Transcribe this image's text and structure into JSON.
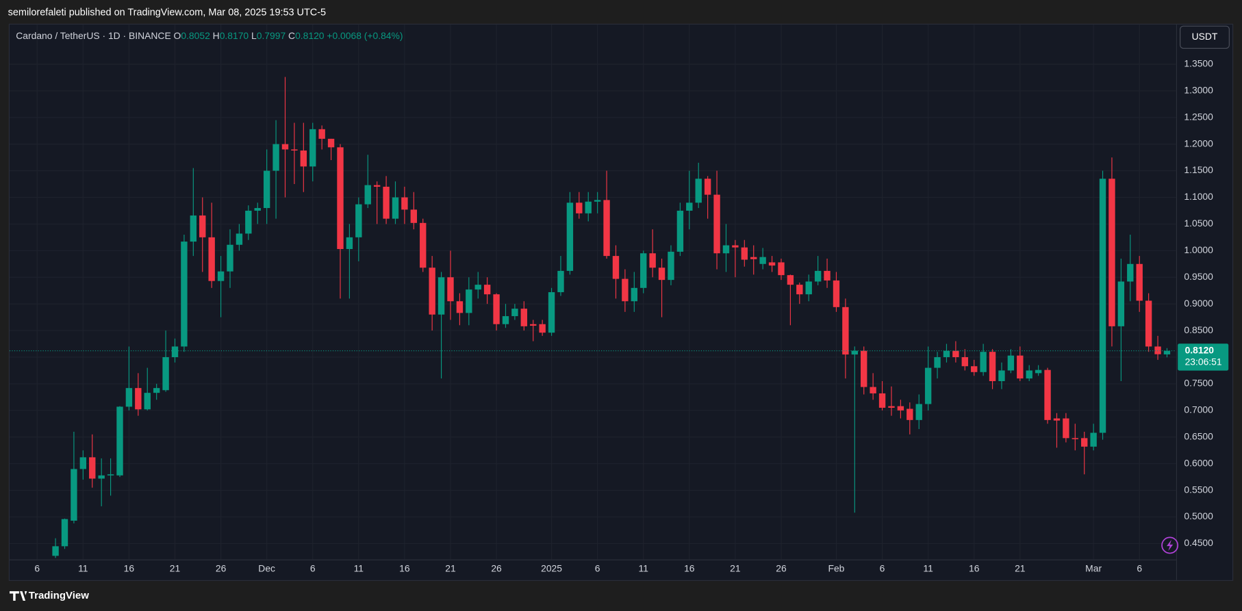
{
  "header": {
    "published": "semilorefaleti published on TradingView.com, Mar 08, 2025 19:53 UTC-5"
  },
  "footer": {
    "brand": "TradingView"
  },
  "chart_data": {
    "type": "candlestick",
    "legend": {
      "symbol": "Cardano / TetherUS · 1D · BINANCE",
      "o_key": "O",
      "o": "0.8052",
      "h_key": "H",
      "h": "0.8170",
      "l_key": "L",
      "l": "0.7997",
      "c_key": "C",
      "c": "0.8120",
      "change": "+0.0068 (+0.84%)"
    },
    "currency": "USDT",
    "up_color": "#089981",
    "down_color": "#f23645",
    "x": [
      "2024-11-08",
      "2024-11-09",
      "2024-11-10",
      "2024-11-11",
      "2024-11-12",
      "2024-11-13",
      "2024-11-14",
      "2024-11-15",
      "2024-11-16",
      "2024-11-17",
      "2024-11-18",
      "2024-11-19",
      "2024-11-20",
      "2024-11-21",
      "2024-11-22",
      "2024-11-23",
      "2024-11-24",
      "2024-11-25",
      "2024-11-26",
      "2024-11-27",
      "2024-11-28",
      "2024-11-29",
      "2024-11-30",
      "2024-12-01",
      "2024-12-02",
      "2024-12-03",
      "2024-12-04",
      "2024-12-05",
      "2024-12-06",
      "2024-12-07",
      "2024-12-08",
      "2024-12-09",
      "2024-12-10",
      "2024-12-11",
      "2024-12-12",
      "2024-12-13",
      "2024-12-14",
      "2024-12-15",
      "2024-12-16",
      "2024-12-17",
      "2024-12-18",
      "2024-12-19",
      "2024-12-20",
      "2024-12-21",
      "2024-12-22",
      "2024-12-23",
      "2024-12-24",
      "2024-12-25",
      "2024-12-26",
      "2024-12-27",
      "2024-12-28",
      "2024-12-29",
      "2024-12-30",
      "2024-12-31",
      "2025-01-01",
      "2025-01-02",
      "2025-01-03",
      "2025-01-04",
      "2025-01-05",
      "2025-01-06",
      "2025-01-07",
      "2025-01-08",
      "2025-01-09",
      "2025-01-10",
      "2025-01-11",
      "2025-01-12",
      "2025-01-13",
      "2025-01-14",
      "2025-01-15",
      "2025-01-16",
      "2025-01-17",
      "2025-01-18",
      "2025-01-19",
      "2025-01-20",
      "2025-01-21",
      "2025-01-22",
      "2025-01-23",
      "2025-01-24",
      "2025-01-25",
      "2025-01-26",
      "2025-01-27",
      "2025-01-28",
      "2025-01-29",
      "2025-01-30",
      "2025-01-31",
      "2025-02-01",
      "2025-02-02",
      "2025-02-03",
      "2025-02-04",
      "2025-02-05",
      "2025-02-06",
      "2025-02-07",
      "2025-02-08",
      "2025-02-09",
      "2025-02-10",
      "2025-02-11",
      "2025-02-12",
      "2025-02-13",
      "2025-02-14",
      "2025-02-15",
      "2025-02-16",
      "2025-02-17",
      "2025-02-18",
      "2025-02-19",
      "2025-02-20",
      "2025-02-21",
      "2025-02-22",
      "2025-02-23",
      "2025-02-24",
      "2025-02-25",
      "2025-02-26",
      "2025-02-27",
      "2025-02-28",
      "2025-03-01",
      "2025-03-02",
      "2025-03-03",
      "2025-03-04",
      "2025-03-05",
      "2025-03-06",
      "2025-03-07",
      "2025-03-08",
      "2025-03-09"
    ],
    "open": [
      0.427,
      0.445,
      0.493,
      0.59,
      0.612,
      0.572,
      0.578,
      0.578,
      0.707,
      0.742,
      0.702,
      0.733,
      0.738,
      0.8,
      0.82,
      1.017,
      1.066,
      1.025,
      0.943,
      0.961,
      1.011,
      1.032,
      1.075,
      1.08,
      1.15,
      1.2,
      1.19,
      1.188,
      1.158,
      1.228,
      1.21,
      1.194,
      1.003,
      1.025,
      1.087,
      1.123,
      1.12,
      1.06,
      1.1,
      1.077,
      1.052,
      0.968,
      0.88,
      0.95,
      0.905,
      0.883,
      0.927,
      0.936,
      0.918,
      0.862,
      0.877,
      0.891,
      0.862,
      0.862,
      0.846,
      0.922,
      0.962,
      1.09,
      1.07,
      1.092,
      1.095,
      0.99,
      0.947,
      0.905,
      0.93,
      0.995,
      0.968,
      0.945,
      0.998,
      1.075,
      1.09,
      1.135,
      1.105,
      0.995,
      1.01,
      1.006,
      0.988,
      0.975,
      0.978,
      0.978,
      0.954,
      0.936,
      0.918,
      0.942,
      0.962,
      0.944,
      0.894,
      0.805,
      0.812,
      0.744,
      0.732,
      0.708,
      0.708,
      0.703,
      0.682,
      0.712,
      0.78,
      0.8,
      0.812,
      0.8,
      0.783,
      0.772,
      0.81,
      0.755,
      0.775,
      0.803,
      0.76,
      0.77,
      0.776,
      0.685,
      0.685,
      0.648,
      0.648,
      0.632,
      0.658,
      1.135,
      0.858,
      0.942,
      0.975,
      0.906,
      0.82,
      0.8052
    ],
    "high": [
      0.46,
      0.497,
      0.66,
      0.625,
      0.655,
      0.61,
      0.61,
      0.708,
      0.82,
      0.77,
      0.78,
      0.75,
      0.85,
      0.835,
      1.03,
      1.155,
      1.1,
      1.09,
      0.99,
      1.04,
      1.05,
      1.085,
      1.09,
      1.19,
      1.245,
      1.326,
      1.24,
      1.24,
      1.24,
      1.235,
      1.21,
      1.2,
      1.05,
      1.1,
      1.18,
      1.13,
      1.14,
      1.13,
      1.12,
      1.11,
      1.06,
      0.99,
      0.96,
      1.0,
      0.92,
      0.95,
      0.96,
      0.95,
      0.92,
      0.9,
      0.9,
      0.905,
      0.87,
      0.87,
      0.93,
      0.99,
      1.11,
      1.11,
      1.11,
      1.11,
      1.15,
      1.01,
      0.965,
      0.96,
      1.0,
      1.04,
      0.985,
      1.01,
      1.09,
      1.15,
      1.165,
      1.14,
      1.15,
      1.05,
      1.02,
      1.02,
      1.01,
      1.005,
      0.99,
      0.985,
      0.955,
      0.94,
      0.955,
      0.99,
      0.985,
      0.96,
      0.91,
      0.82,
      0.82,
      0.77,
      0.755,
      0.745,
      0.72,
      0.715,
      0.73,
      0.82,
      0.81,
      0.825,
      0.83,
      0.815,
      0.795,
      0.825,
      0.815,
      0.79,
      0.815,
      0.82,
      0.785,
      0.785,
      0.78,
      0.695,
      0.695,
      0.675,
      0.66,
      0.675,
      1.15,
      1.175,
      0.985,
      1.03,
      0.99,
      0.92,
      0.84,
      0.817
    ],
    "low": [
      0.423,
      0.44,
      0.488,
      0.57,
      0.555,
      0.52,
      0.54,
      0.575,
      0.7,
      0.69,
      0.7,
      0.72,
      0.735,
      0.79,
      0.81,
      0.99,
      0.96,
      0.93,
      0.875,
      0.93,
      1.0,
      1.02,
      1.05,
      1.05,
      1.06,
      1.1,
      1.125,
      1.11,
      1.13,
      1.19,
      1.17,
      0.91,
      0.91,
      0.98,
      1.08,
      1.05,
      1.05,
      1.05,
      1.05,
      1.04,
      0.96,
      0.85,
      0.76,
      0.87,
      0.86,
      0.86,
      0.91,
      0.9,
      0.85,
      0.855,
      0.87,
      0.85,
      0.83,
      0.84,
      0.84,
      0.915,
      0.955,
      1.06,
      1.055,
      1.07,
      0.985,
      0.91,
      0.885,
      0.885,
      0.92,
      0.95,
      0.875,
      0.935,
      0.99,
      1.04,
      1.08,
      1.06,
      0.965,
      0.96,
      0.95,
      0.97,
      0.955,
      0.965,
      0.96,
      0.945,
      0.86,
      0.9,
      0.905,
      0.935,
      0.93,
      0.885,
      0.76,
      0.508,
      0.73,
      0.72,
      0.7,
      0.69,
      0.685,
      0.655,
      0.665,
      0.7,
      0.76,
      0.79,
      0.79,
      0.775,
      0.765,
      0.765,
      0.74,
      0.74,
      0.77,
      0.755,
      0.755,
      0.765,
      0.675,
      0.63,
      0.64,
      0.625,
      0.58,
      0.625,
      0.645,
      0.82,
      0.755,
      0.905,
      0.885,
      0.81,
      0.795,
      0.7997
    ],
    "close": [
      0.445,
      0.496,
      0.59,
      0.612,
      0.572,
      0.578,
      0.58,
      0.707,
      0.742,
      0.702,
      0.733,
      0.742,
      0.8,
      0.82,
      1.017,
      1.066,
      1.025,
      0.943,
      0.961,
      1.011,
      1.032,
      1.075,
      1.08,
      1.15,
      1.2,
      1.19,
      1.188,
      1.158,
      1.228,
      1.21,
      1.194,
      1.003,
      1.025,
      1.087,
      1.123,
      1.12,
      1.06,
      1.1,
      1.077,
      1.052,
      0.968,
      0.88,
      0.95,
      0.905,
      0.883,
      0.927,
      0.936,
      0.918,
      0.862,
      0.877,
      0.891,
      0.858,
      0.859,
      0.846,
      0.922,
      0.962,
      1.09,
      1.07,
      1.092,
      1.095,
      0.99,
      0.947,
      0.905,
      0.93,
      0.995,
      0.968,
      0.945,
      0.998,
      1.075,
      1.09,
      1.135,
      1.105,
      0.995,
      1.01,
      1.006,
      0.983,
      0.984,
      0.988,
      0.972,
      0.954,
      0.936,
      0.918,
      0.942,
      0.962,
      0.944,
      0.894,
      0.805,
      0.812,
      0.744,
      0.732,
      0.705,
      0.705,
      0.7,
      0.682,
      0.712,
      0.78,
      0.8,
      0.812,
      0.8,
      0.783,
      0.772,
      0.81,
      0.755,
      0.775,
      0.803,
      0.76,
      0.775,
      0.776,
      0.682,
      0.681,
      0.648,
      0.646,
      0.632,
      0.658,
      1.135,
      0.858,
      0.942,
      0.975,
      0.906,
      0.82,
      0.8055,
      0.812
    ],
    "last_price": {
      "value": 0.812,
      "label": "0.8120"
    },
    "countdown": "23:06:51",
    "xlim": [
      "2024-11-03",
      "2025-03-10"
    ],
    "xticks": [
      {
        "value": "2024-11-06",
        "label": "6"
      },
      {
        "value": "2024-11-11",
        "label": "11"
      },
      {
        "value": "2024-11-16",
        "label": "16"
      },
      {
        "value": "2024-11-21",
        "label": "21"
      },
      {
        "value": "2024-11-26",
        "label": "26"
      },
      {
        "value": "2024-12-01",
        "label": "Dec"
      },
      {
        "value": "2024-12-06",
        "label": "6"
      },
      {
        "value": "2024-12-11",
        "label": "11"
      },
      {
        "value": "2024-12-16",
        "label": "16"
      },
      {
        "value": "2024-12-21",
        "label": "21"
      },
      {
        "value": "2024-12-26",
        "label": "26"
      },
      {
        "value": "2025-01-01",
        "label": "2025"
      },
      {
        "value": "2025-01-06",
        "label": "6"
      },
      {
        "value": "2025-01-11",
        "label": "11"
      },
      {
        "value": "2025-01-16",
        "label": "16"
      },
      {
        "value": "2025-01-21",
        "label": "21"
      },
      {
        "value": "2025-01-26",
        "label": "26"
      },
      {
        "value": "2025-02-01",
        "label": "Feb"
      },
      {
        "value": "2025-02-06",
        "label": "6"
      },
      {
        "value": "2025-02-11",
        "label": "11"
      },
      {
        "value": "2025-02-16",
        "label": "16"
      },
      {
        "value": "2025-02-21",
        "label": "21"
      },
      {
        "value": "2025-03-01",
        "label": "Mar"
      },
      {
        "value": "2025-03-06",
        "label": "6"
      }
    ],
    "ylim": [
      0.42,
      1.426
    ],
    "yticks": [
      {
        "value": 0.45,
        "label": "0.4500"
      },
      {
        "value": 0.5,
        "label": "0.5000"
      },
      {
        "value": 0.55,
        "label": "0.5500"
      },
      {
        "value": 0.6,
        "label": "0.6000"
      },
      {
        "value": 0.65,
        "label": "0.6500"
      },
      {
        "value": 0.7,
        "label": "0.7000"
      },
      {
        "value": 0.75,
        "label": "0.7500"
      },
      {
        "value": 0.8,
        "label": "0.8000"
      },
      {
        "value": 0.85,
        "label": "0.8500"
      },
      {
        "value": 0.9,
        "label": "0.9000"
      },
      {
        "value": 0.95,
        "label": "0.9500"
      },
      {
        "value": 1.0,
        "label": "1.0000"
      },
      {
        "value": 1.05,
        "label": "1.0500"
      },
      {
        "value": 1.1,
        "label": "1.1000"
      },
      {
        "value": 1.15,
        "label": "1.1500"
      },
      {
        "value": 1.2,
        "label": "1.2000"
      },
      {
        "value": 1.25,
        "label": "1.2500"
      },
      {
        "value": 1.3,
        "label": "1.3000"
      },
      {
        "value": 1.35,
        "label": "1.3500"
      }
    ],
    "grid": true
  }
}
